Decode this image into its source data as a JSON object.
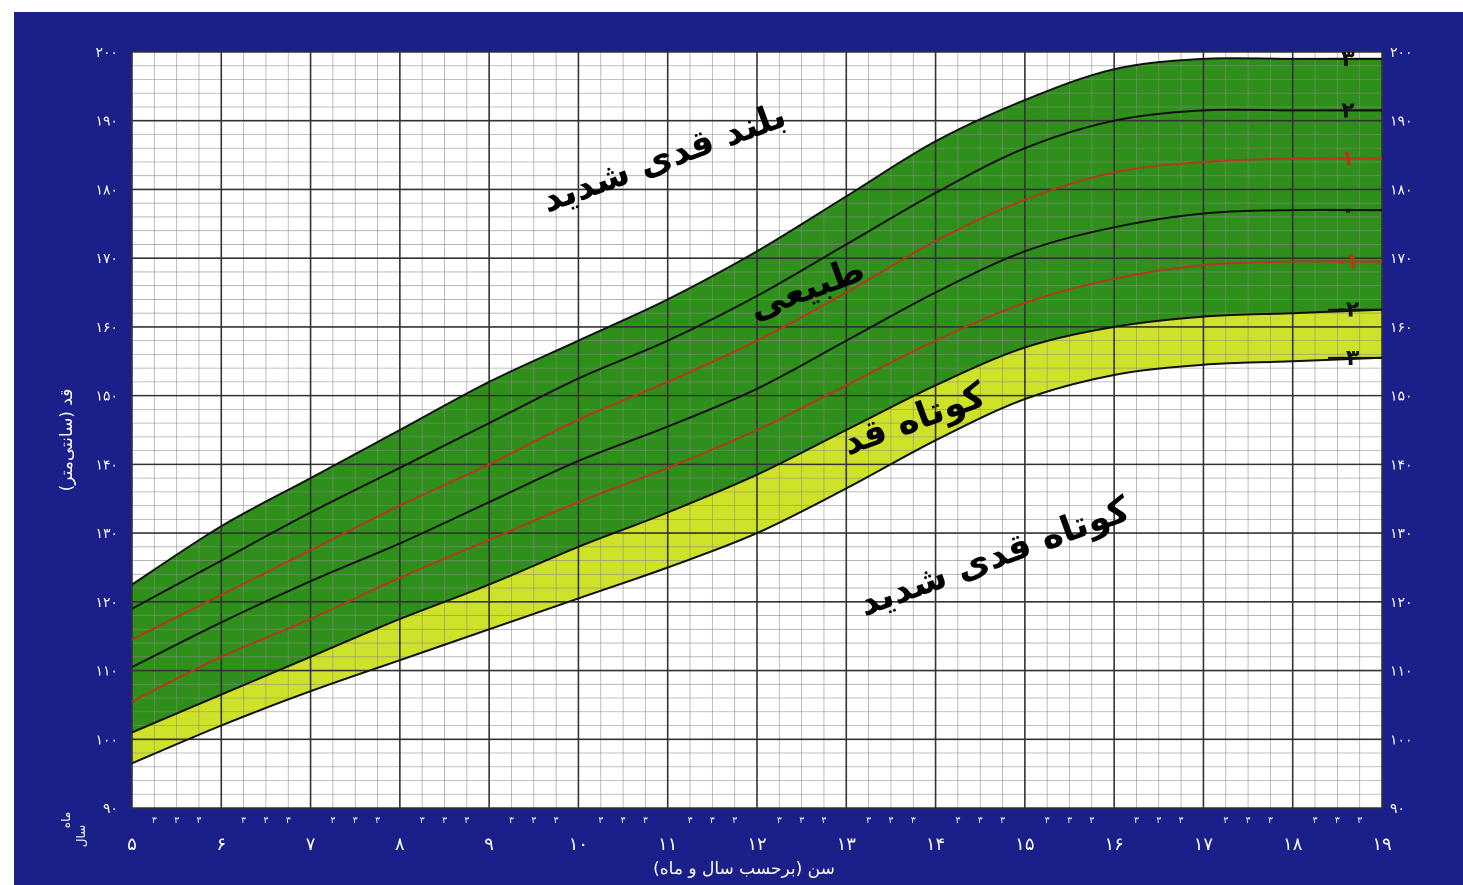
{
  "chart_data": {
    "type": "line",
    "ylabel": "قد (سانتی‌متر)",
    "xlabel": "سن (برحسب سال و ماه)",
    "corner_labels": {
      "top": "ماه",
      "bottom": "سال"
    },
    "xlim": [
      5,
      19
    ],
    "ylim": [
      90,
      200
    ],
    "x_tick_labels": [
      "۵",
      "۶",
      "۷",
      "۸",
      "۹",
      "۱۰",
      "۱۱",
      "۱۲",
      "۱۳",
      "۱۴",
      "۱۵",
      "۱۶",
      "۱۷",
      "۱۸",
      "۱۹"
    ],
    "y_tick_labels": [
      "۹۰",
      "۱۰۰",
      "۱۱۰",
      "۱۲۰",
      "۱۳۰",
      "۱۴۰",
      "۱۵۰",
      "۱۶۰",
      "۱۷۰",
      "۱۸۰",
      "۱۹۰",
      "۲۰۰"
    ],
    "month_tick_label": "۳",
    "x": [
      5,
      6,
      7,
      8,
      9,
      10,
      11,
      12,
      13,
      14,
      15,
      16,
      17,
      18,
      19
    ],
    "series": [
      {
        "name": "۳",
        "color": "#111111",
        "values": [
          122.5,
          131,
          138,
          145,
          152,
          158,
          164,
          171,
          179,
          187,
          193,
          197.5,
          199,
          199,
          199
        ]
      },
      {
        "name": "۲",
        "color": "#111111",
        "values": [
          119,
          126,
          133,
          139.5,
          146,
          152.5,
          158,
          164.5,
          172,
          179.5,
          186,
          190,
          191.5,
          191.5,
          191.5
        ]
      },
      {
        "name": "۱",
        "color": "#b23a1a",
        "values": [
          114.5,
          121,
          127.5,
          134,
          140,
          146.5,
          152,
          158,
          165,
          172.5,
          178.5,
          182.5,
          184,
          184.5,
          184.5
        ]
      },
      {
        "name": "۰",
        "color": "#111111",
        "values": [
          110.5,
          117,
          123,
          128.5,
          134.5,
          140.5,
          145.5,
          151,
          158,
          165,
          171,
          174.5,
          176.5,
          177,
          177
        ]
      },
      {
        "name": "-۱",
        "color": "#b23a1a",
        "values": [
          105.5,
          112,
          117.5,
          123.5,
          129,
          134.5,
          139.5,
          145,
          151.5,
          158,
          163.5,
          167,
          169,
          169.5,
          169.5
        ]
      },
      {
        "name": "-۲",
        "color": "#111111",
        "values": [
          101,
          106.5,
          112,
          117.5,
          122.5,
          128,
          133,
          138.5,
          145,
          151.5,
          157,
          160,
          161.5,
          162,
          162.5
        ]
      },
      {
        "name": "-۳",
        "color": "#111111",
        "values": [
          96.5,
          102,
          107,
          111.5,
          116,
          120.5,
          125,
          130,
          136.5,
          143.5,
          149.5,
          153,
          154.5,
          155,
          155.5
        ]
      }
    ],
    "zones": [
      {
        "label": "بلند قدی شدید",
        "x": 11,
        "y": 183,
        "rotate": -20
      },
      {
        "label": "طبیعی",
        "x": 12.6,
        "y": 164,
        "rotate": -20
      },
      {
        "label": "کوتاه قد",
        "x": 13.8,
        "y": 145,
        "rotate": -20
      },
      {
        "label": "کوتاه قدی شدید",
        "x": 14.7,
        "y": 125,
        "rotate": -20
      }
    ],
    "colors": {
      "frame": "#1b1f8a",
      "normal_band": "#2e8f1a",
      "short_band": "#cfe22a",
      "grid": "#8a8a8a",
      "tick_text": "#ffffff",
      "red_label": "#b23a1a"
    },
    "grid": true
  }
}
